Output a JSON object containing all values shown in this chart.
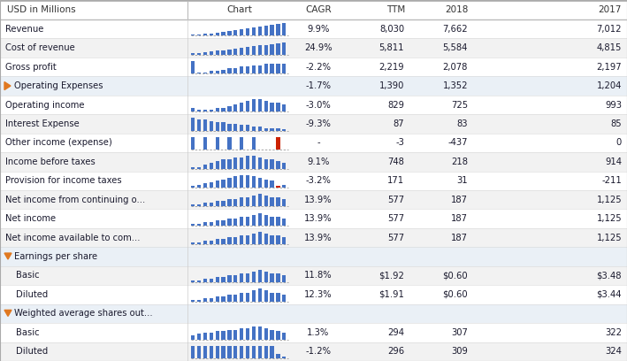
{
  "rows": [
    {
      "label": "Revenue",
      "indent": 0,
      "section": false,
      "cagr": "9.9%",
      "ttm": "8,030",
      "v2018": "7,662",
      "v2017": "7,012",
      "has_chart": true,
      "chart_key": "revenue"
    },
    {
      "label": "Cost of revenue",
      "indent": 0,
      "section": false,
      "cagr": "24.9%",
      "ttm": "5,811",
      "v2018": "5,584",
      "v2017": "4,815",
      "has_chart": true,
      "chart_key": "cost_rev"
    },
    {
      "label": "Gross profit",
      "indent": 0,
      "section": false,
      "cagr": "-2.2%",
      "ttm": "2,219",
      "v2018": "2,078",
      "v2017": "2,197",
      "has_chart": true,
      "chart_key": "gross_profit"
    },
    {
      "label": "Operating Expenses",
      "indent": 0,
      "section": true,
      "cagr": "-1.7%",
      "ttm": "1,390",
      "v2018": "1,352",
      "v2017": "1,204",
      "has_chart": false,
      "chart_key": "",
      "arrow": "right"
    },
    {
      "label": "Operating income",
      "indent": 0,
      "section": false,
      "cagr": "-3.0%",
      "ttm": "829",
      "v2018": "725",
      "v2017": "993",
      "has_chart": true,
      "chart_key": "op_income"
    },
    {
      "label": "Interest Expense",
      "indent": 0,
      "section": false,
      "cagr": "-9.3%",
      "ttm": "87",
      "v2018": "83",
      "v2017": "85",
      "has_chart": true,
      "chart_key": "interest"
    },
    {
      "label": "Other income (expense)",
      "indent": 0,
      "section": false,
      "cagr": "-",
      "ttm": "-3",
      "v2018": "-437",
      "v2017": "0",
      "has_chart": true,
      "chart_key": "other_inc"
    },
    {
      "label": "Income before taxes",
      "indent": 0,
      "section": false,
      "cagr": "9.1%",
      "ttm": "748",
      "v2018": "218",
      "v2017": "914",
      "has_chart": true,
      "chart_key": "inc_before_tax"
    },
    {
      "label": "Provision for income taxes",
      "indent": 0,
      "section": false,
      "cagr": "-3.2%",
      "ttm": "171",
      "v2018": "31",
      "v2017": "-211",
      "has_chart": true,
      "chart_key": "provision"
    },
    {
      "label": "Net income from continuing o...",
      "indent": 0,
      "section": false,
      "cagr": "13.9%",
      "ttm": "577",
      "v2018": "187",
      "v2017": "1,125",
      "has_chart": true,
      "chart_key": "net_cont"
    },
    {
      "label": "Net income",
      "indent": 0,
      "section": false,
      "cagr": "13.9%",
      "ttm": "577",
      "v2018": "187",
      "v2017": "1,125",
      "has_chart": true,
      "chart_key": "net_cont"
    },
    {
      "label": "Net income available to com...",
      "indent": 0,
      "section": false,
      "cagr": "13.9%",
      "ttm": "577",
      "v2018": "187",
      "v2017": "1,125",
      "has_chart": true,
      "chart_key": "net_cont"
    },
    {
      "label": "Earnings per share",
      "indent": 0,
      "section": true,
      "cagr": "",
      "ttm": "",
      "v2018": "",
      "v2017": "",
      "has_chart": false,
      "chart_key": "",
      "arrow": "down"
    },
    {
      "label": "Basic",
      "indent": 1,
      "section": false,
      "cagr": "11.8%",
      "ttm": "$1.92",
      "v2018": "$0.60",
      "v2017": "$3.48",
      "has_chart": true,
      "chart_key": "eps_basic"
    },
    {
      "label": "Diluted",
      "indent": 1,
      "section": false,
      "cagr": "12.3%",
      "ttm": "$1.91",
      "v2018": "$0.60",
      "v2017": "$3.44",
      "has_chart": true,
      "chart_key": "eps_basic"
    },
    {
      "label": "Weighted average shares out...",
      "indent": 0,
      "section": true,
      "cagr": "",
      "ttm": "",
      "v2018": "",
      "v2017": "",
      "has_chart": false,
      "chart_key": "",
      "arrow": "down"
    },
    {
      "label": "Basic",
      "indent": 1,
      "section": false,
      "cagr": "1.3%",
      "ttm": "294",
      "v2018": "307",
      "v2017": "322",
      "has_chart": true,
      "chart_key": "wa_basic"
    },
    {
      "label": "Diluted",
      "indent": 1,
      "section": false,
      "cagr": "-1.2%",
      "ttm": "296",
      "v2018": "309",
      "v2017": "324",
      "has_chart": true,
      "chart_key": "wa_diluted"
    }
  ],
  "charts": {
    "revenue": {
      "bars": [
        1,
        1,
        2,
        2,
        3,
        4,
        5,
        6,
        7,
        8,
        9,
        10,
        11,
        12,
        13,
        14
      ],
      "red_idx": -1,
      "style": "grow"
    },
    "cost_rev": {
      "bars": [
        2,
        2,
        3,
        4,
        5,
        5,
        6,
        7,
        8,
        9,
        10,
        11,
        12,
        13,
        14,
        15
      ],
      "red_idx": -1,
      "style": "grow"
    },
    "gross_profit": {
      "bars": [
        9,
        1,
        1,
        2,
        2,
        3,
        4,
        4,
        5,
        5,
        6,
        6,
        7,
        7,
        7,
        7
      ],
      "red_idx": -1,
      "style": "mixed"
    },
    "op_income": {
      "bars": [
        2,
        1,
        1,
        1,
        2,
        2,
        3,
        4,
        5,
        6,
        7,
        7,
        6,
        5,
        5,
        4
      ],
      "red_idx": -1,
      "style": "mixed"
    },
    "interest": {
      "bars": [
        9,
        8,
        8,
        7,
        6,
        6,
        5,
        5,
        4,
        4,
        3,
        3,
        2,
        2,
        2,
        1
      ],
      "red_idx": -1,
      "style": "down"
    },
    "other_inc": {
      "bars": [
        1,
        0,
        1,
        0,
        1,
        0,
        1,
        0,
        1,
        0,
        1,
        0,
        0,
        0,
        1,
        0
      ],
      "red_idx": 14,
      "style": "red"
    },
    "inc_before_tax": {
      "bars": [
        1,
        1,
        2,
        3,
        4,
        5,
        5,
        6,
        6,
        7,
        7,
        6,
        5,
        5,
        4,
        3
      ],
      "red_idx": -1,
      "style": "mixed"
    },
    "provision": {
      "bars": [
        1,
        2,
        3,
        4,
        5,
        6,
        7,
        8,
        9,
        9,
        8,
        7,
        6,
        5,
        1,
        2
      ],
      "red_idx": 14,
      "style": "red2"
    },
    "net_cont": {
      "bars": [
        1,
        1,
        2,
        2,
        3,
        3,
        4,
        4,
        5,
        5,
        6,
        7,
        6,
        5,
        5,
        4
      ],
      "red_idx": -1,
      "style": "mixed"
    },
    "eps_basic": {
      "bars": [
        1,
        1,
        2,
        2,
        3,
        3,
        4,
        4,
        5,
        5,
        6,
        7,
        6,
        5,
        5,
        4
      ],
      "red_idx": -1,
      "style": "mixed"
    },
    "wa_basic": {
      "bars": [
        3,
        4,
        5,
        5,
        6,
        6,
        7,
        7,
        8,
        8,
        9,
        9,
        8,
        7,
        6,
        5
      ],
      "red_idx": -1,
      "style": "mixed"
    },
    "wa_diluted": {
      "bars": [
        8,
        8,
        8,
        8,
        8,
        8,
        8,
        8,
        8,
        8,
        8,
        8,
        8,
        8,
        3,
        1
      ],
      "red_idx": -1,
      "style": "full"
    }
  },
  "bg_white": "#ffffff",
  "bg_gray": "#f2f2f2",
  "bg_section": "#eaf0f6",
  "border_light": "#d8d8d8",
  "border_header": "#bbbbbb",
  "text_dark": "#1a1a2e",
  "text_cagr": "#777777",
  "blue": "#4472c4",
  "red": "#cc2200",
  "orange": "#e07820",
  "header_bg": "#ffffff"
}
